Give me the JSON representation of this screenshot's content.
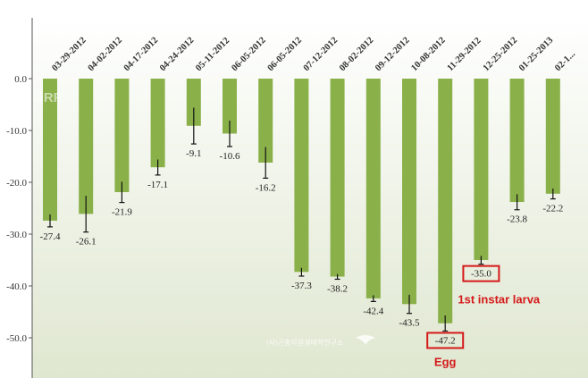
{
  "chart_data": {
    "type": "bar",
    "categories": [
      "03-29-2012",
      "04-02-2012",
      "04-17-2012",
      "04-24-2012",
      "05-11-2012",
      "06-05-2012",
      "06-05-2012",
      "07-12-2012",
      "08-02-2012",
      "09-12-2012",
      "10-08-2012",
      "11-29-2012",
      "12-25-2012",
      "01-25-2013",
      "02-1..."
    ],
    "values": [
      -27.4,
      -26.1,
      -21.9,
      -17.1,
      -9.1,
      -10.6,
      -16.2,
      -37.3,
      -38.2,
      -42.4,
      -43.5,
      -47.2,
      -35.0,
      -23.8,
      -22.2
    ],
    "errors": [
      1.2,
      3.5,
      2.0,
      1.5,
      3.5,
      2.5,
      3.0,
      0.8,
      0.5,
      0.6,
      1.8,
      1.5,
      0.8,
      1.5,
      1.0
    ],
    "value_labels": [
      "-27.4",
      "-26.1",
      "-21.9",
      "-17.1",
      "-9.1",
      "-10.6",
      "-16.2",
      "-37.3",
      "-38.2",
      "-42.4",
      "-43.5",
      "-47.2",
      "-35.0",
      "-23.8",
      "-22.2"
    ],
    "y_ticks": [
      0,
      -10,
      -20,
      -30,
      -40,
      -50
    ],
    "y_tick_labels": [
      "0.0",
      "-10.0",
      "-20.0",
      "-30.0",
      "-40.0",
      "-50.0"
    ],
    "ylim": [
      -55,
      0
    ],
    "title": "",
    "xlabel": "",
    "ylabel": "",
    "grid": false,
    "bar_color": "#8ab04a",
    "background_gradient": [
      "#ffffff",
      "#dfe7d0"
    ],
    "highlighted": [
      {
        "index": 11,
        "label": "Egg",
        "color": "#d41a1a"
      },
      {
        "index": 12,
        "label": "1st instar larva",
        "color": "#d41a1a"
      }
    ]
  },
  "watermark": {
    "text": "(사)곤충자원생태학연구소",
    "logo_text": "URF"
  }
}
